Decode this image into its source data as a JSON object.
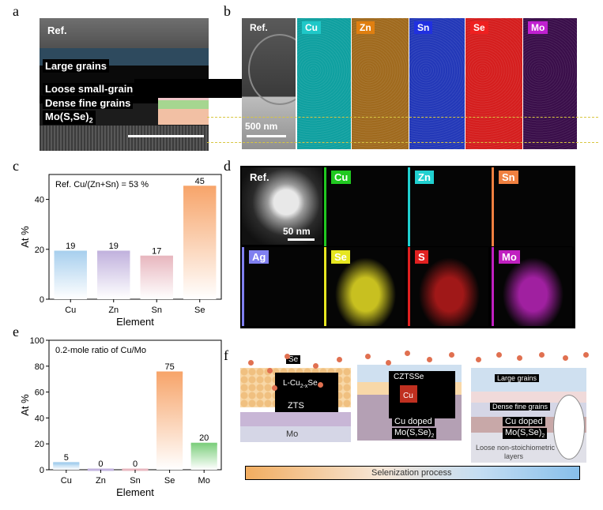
{
  "panels": {
    "a": "a",
    "b": "b",
    "c": "c",
    "d": "d",
    "e": "e",
    "f": "f"
  },
  "panel_a": {
    "ref": "Ref.",
    "layers": [
      "Large grains",
      "Loose small-grain",
      "Dense fine grains"
    ],
    "mo_base": "Mo(S,Se)",
    "mo_sub": "2"
  },
  "panel_b": {
    "ref": "Ref.",
    "scale": "500 nm",
    "maps": [
      {
        "label": "Cu",
        "tag_color": "#1fc8c8",
        "bg": "#0fa0a0"
      },
      {
        "label": "Zn",
        "tag_color": "#e07f10",
        "bg": "#a06a1e"
      },
      {
        "label": "Sn",
        "tag_color": "#2030e0",
        "bg": "#2338b8"
      },
      {
        "label": "Se",
        "tag_color": "#ee2020",
        "bg": "#d51e1e"
      },
      {
        "label": "Mo",
        "tag_color": "#c020d0",
        "bg": "#3a0e4a"
      }
    ]
  },
  "panel_d": {
    "ref": "Ref.",
    "scale": "50 nm",
    "maps": [
      {
        "label": "Cu",
        "tag_color": "#20c820"
      },
      {
        "label": "Zn",
        "tag_color": "#20d0d0"
      },
      {
        "label": "Sn",
        "tag_color": "#f08040"
      },
      {
        "label": "Ag",
        "tag_color": "#8080f0"
      },
      {
        "label": "Se",
        "tag_color": "#e6e620"
      },
      {
        "label": "S",
        "tag_color": "#e02020"
      },
      {
        "label": "Mo",
        "tag_color": "#c020c0"
      }
    ]
  },
  "chart_data": [
    {
      "type": "bar",
      "annotation": "Ref. Cu/(Zn+Sn) = 53 %",
      "categories": [
        "Cu",
        "Zn",
        "Sn",
        "Se"
      ],
      "values": [
        19,
        19,
        17,
        45
      ],
      "colors": [
        "#a9d0ee",
        "#c2b3de",
        "#e8b8c0",
        "#f7a56b"
      ],
      "xlabel": "Element",
      "ylabel": "At %",
      "ylim": [
        0,
        50
      ],
      "yticks": [
        "0",
        "20",
        "40"
      ]
    },
    {
      "type": "bar",
      "annotation": "0.2-mole ratio of Cu/Mo",
      "categories": [
        "Cu",
        "Zn",
        "Sn",
        "Se",
        "Mo"
      ],
      "values": [
        5,
        0,
        0,
        75,
        20
      ],
      "colors": [
        "#a9d0ee",
        "#c2b3de",
        "#e8b8c0",
        "#f7a56b",
        "#80d080"
      ],
      "xlabel": "Element",
      "ylabel": "At %",
      "ylim": [
        0,
        100
      ],
      "yticks": [
        "0",
        "20",
        "40",
        "60",
        "80",
        "100"
      ]
    }
  ],
  "panel_f": {
    "s1": {
      "se": "Se",
      "lcu": "L-Cu",
      "lcu_sub": "2-x",
      "lcu_tail": "Se",
      "zts": "ZTS",
      "mo": "Mo"
    },
    "s2": {
      "czts": "CZTSSe",
      "cu": "Cu",
      "mo1": "Cu doped",
      "mo2": "Mo(S,Se)",
      "mo_sub": "2"
    },
    "s3": {
      "large": "Large grains",
      "dense": "Dense fine grains",
      "mo1": "Cu doped",
      "mo2": "Mo(S,Se)",
      "mo_sub": "2",
      "loose": "Loose non-stoichiometric",
      "loose2": "layers"
    },
    "process": "Selenization process"
  }
}
